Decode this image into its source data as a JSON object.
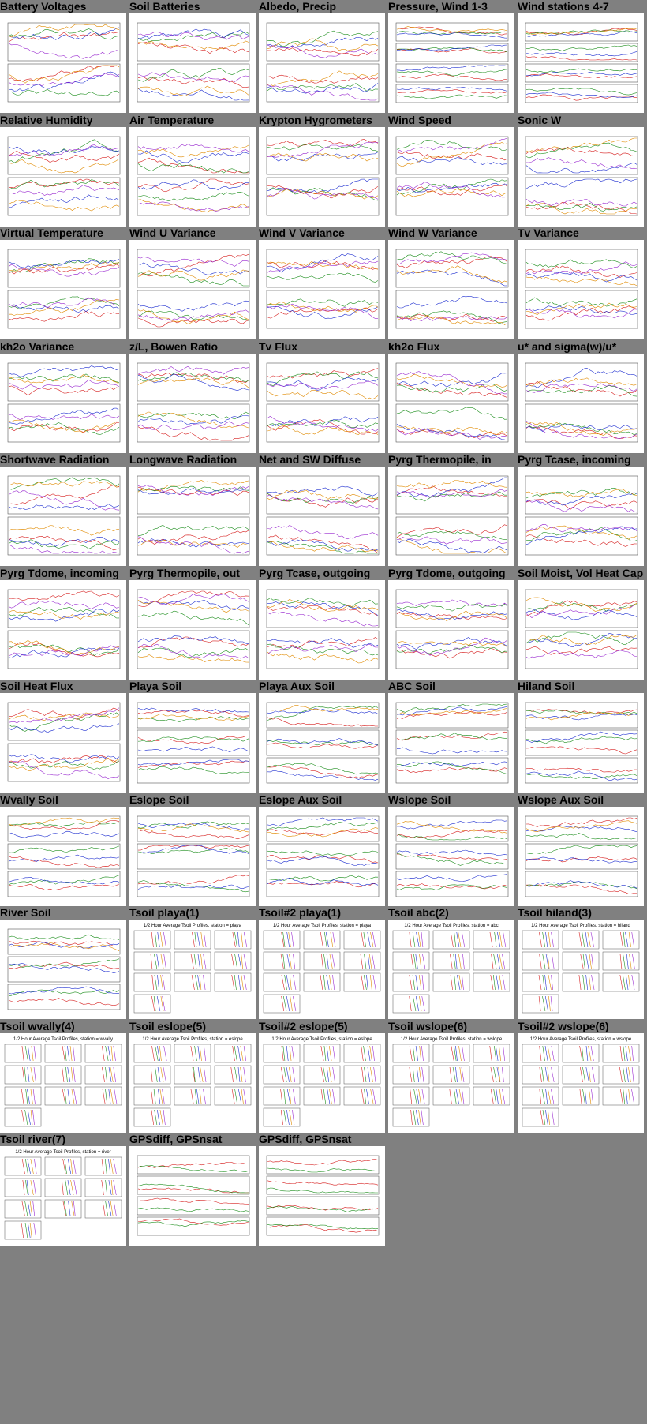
{
  "page": {
    "background": "#808080"
  },
  "plots": [
    {
      "title": "Battery Voltages",
      "kind": "panels2"
    },
    {
      "title": "Soil Batteries",
      "kind": "panels2"
    },
    {
      "title": "Albedo, Precip",
      "kind": "panels2"
    },
    {
      "title": "Pressure, Wind 1-3",
      "kind": "panels4"
    },
    {
      "title": "Wind stations 4-7",
      "kind": "panels4"
    },
    {
      "title": "Relative Humidity",
      "kind": "panels2"
    },
    {
      "title": "Air Temperature",
      "kind": "panels2"
    },
    {
      "title": "Krypton Hygrometers",
      "kind": "panels2"
    },
    {
      "title": "Wind Speed",
      "kind": "panels2"
    },
    {
      "title": "Sonic W",
      "kind": "panels2"
    },
    {
      "title": "Virtual Temperature",
      "kind": "panels2"
    },
    {
      "title": "Wind U Variance",
      "kind": "panels2"
    },
    {
      "title": "Wind V Variance",
      "kind": "panels2"
    },
    {
      "title": "Wind W Variance",
      "kind": "panels2"
    },
    {
      "title": "Tv Variance",
      "kind": "panels2"
    },
    {
      "title": "kh2o Variance",
      "kind": "panels2"
    },
    {
      "title": "z/L, Bowen Ratio",
      "kind": "panels2"
    },
    {
      "title": "Tv Flux",
      "kind": "panels2"
    },
    {
      "title": "kh2o Flux",
      "kind": "panels2"
    },
    {
      "title": "u* and sigma(w)/u*",
      "kind": "panels2"
    },
    {
      "title": "Shortwave Radiation",
      "kind": "panels2"
    },
    {
      "title": "Longwave Radiation",
      "kind": "panels2"
    },
    {
      "title": "Net and SW Diffuse",
      "kind": "panels2"
    },
    {
      "title": "Pyrg Thermopile, in",
      "kind": "panels2"
    },
    {
      "title": "Pyrg Tcase, incoming",
      "kind": "panels2"
    },
    {
      "title": "Pyrg Tdome, incoming",
      "kind": "panels2"
    },
    {
      "title": "Pyrg Thermopile, out",
      "kind": "panels2"
    },
    {
      "title": "Pyrg Tcase, outgoing",
      "kind": "panels2"
    },
    {
      "title": "Pyrg Tdome, outgoing",
      "kind": "panels2"
    },
    {
      "title": "Soil Moist, Vol Heat Cap",
      "kind": "panels2"
    },
    {
      "title": "Soil Heat Flux",
      "kind": "panels2"
    },
    {
      "title": "Playa Soil",
      "kind": "panels3"
    },
    {
      "title": "Playa Aux Soil",
      "kind": "panels3"
    },
    {
      "title": "ABC Soil",
      "kind": "panels3"
    },
    {
      "title": "Hiland Soil",
      "kind": "panels3"
    },
    {
      "title": "Wvally Soil",
      "kind": "panels3"
    },
    {
      "title": "Eslope Soil",
      "kind": "panels3"
    },
    {
      "title": "Eslope Aux Soil",
      "kind": "panels3"
    },
    {
      "title": "Wslope Soil",
      "kind": "panels3"
    },
    {
      "title": "Wslope Aux Soil",
      "kind": "panels3"
    },
    {
      "title": "River Soil",
      "kind": "panels3"
    },
    {
      "title": "Tsoil playa(1)",
      "kind": "profiles",
      "header": "1/2 Hour Average Tsoil Profiles, station = playa"
    },
    {
      "title": "Tsoil#2 playa(1)",
      "kind": "profiles",
      "header": "1/2 Hour Average Tsoil Profiles, station = playa"
    },
    {
      "title": "Tsoil abc(2)",
      "kind": "profiles",
      "header": "1/2 Hour Average Tsoil Profiles, station = abc"
    },
    {
      "title": "Tsoil hiland(3)",
      "kind": "profiles",
      "header": "1/2 Hour Average Tsoil Profiles, station = hiland"
    },
    {
      "title": "Tsoil wvally(4)",
      "kind": "profiles",
      "header": "1/2 Hour Average Tsoil Profiles, station = wvally"
    },
    {
      "title": "Tsoil eslope(5)",
      "kind": "profiles",
      "header": "1/2 Hour Average Tsoil Profiles, station = eslope"
    },
    {
      "title": "Tsoil#2 eslope(5)",
      "kind": "profiles",
      "header": "1/2 Hour Average Tsoil Profiles, station = eslope"
    },
    {
      "title": "Tsoil wslope(6)",
      "kind": "profiles",
      "header": "1/2 Hour Average Tsoil Profiles, station = wslope"
    },
    {
      "title": "Tsoil#2 wslope(6)",
      "kind": "profiles",
      "header": "1/2 Hour Average Tsoil Profiles, station = wslope"
    },
    {
      "title": "Tsoil river(7)",
      "kind": "profiles",
      "header": "1/2 Hour Average Tsoil Profiles, station = river"
    },
    {
      "title": "GPSdiff, GPSnsat",
      "kind": "gps"
    },
    {
      "title": "GPSdiff, GPSnsat",
      "kind": "gps"
    }
  ],
  "series_colors": [
    "#d62020",
    "#1f8f1f",
    "#2030d0",
    "#e08a00",
    "#9a2bd0",
    "#6a6a6a",
    "#c8c020"
  ]
}
